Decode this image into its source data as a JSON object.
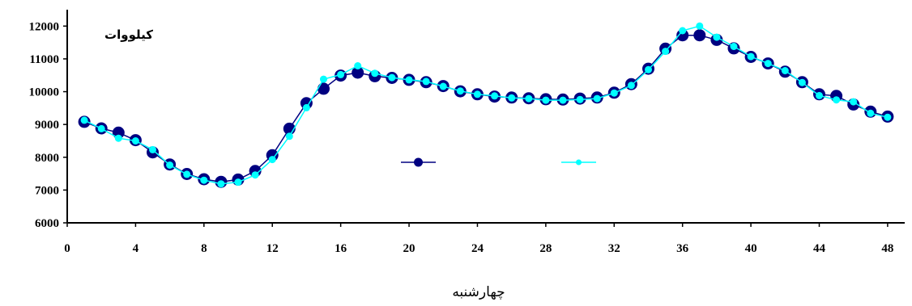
{
  "chart_data": {
    "type": "line",
    "title": "",
    "xlabel": "چهارشنبه",
    "ylabel": "کیلووات",
    "xlim": [
      0,
      49
    ],
    "ylim": [
      6000,
      12500
    ],
    "xticks": [
      0,
      4,
      8,
      12,
      16,
      20,
      24,
      28,
      32,
      36,
      40,
      44,
      48
    ],
    "yticks": [
      6000,
      7000,
      8000,
      9000,
      10000,
      11000,
      12000
    ],
    "grid": false,
    "legend_position": "center",
    "x": [
      1,
      2,
      3,
      4,
      5,
      6,
      7,
      8,
      9,
      10,
      11,
      12,
      13,
      14,
      15,
      16,
      17,
      18,
      19,
      20,
      21,
      22,
      23,
      24,
      25,
      26,
      27,
      28,
      29,
      30,
      31,
      32,
      33,
      34,
      35,
      36,
      37,
      38,
      39,
      40,
      41,
      42,
      43,
      44,
      45,
      46,
      47,
      48
    ],
    "series": [
      {
        "color": "#000080",
        "values": [
          9080,
          8880,
          8750,
          8520,
          8150,
          7780,
          7490,
          7330,
          7250,
          7320,
          7580,
          8060,
          8870,
          9650,
          10090,
          10490,
          10580,
          10470,
          10420,
          10360,
          10290,
          10170,
          10010,
          9920,
          9850,
          9820,
          9800,
          9770,
          9760,
          9790,
          9820,
          9970,
          10230,
          10700,
          11310,
          11720,
          11720,
          11580,
          11320,
          11060,
          10860,
          10610,
          10290,
          9920,
          9870,
          9610,
          9390,
          9240
        ]
      },
      {
        "color": "#00FFFF",
        "values": [
          9130,
          8870,
          8580,
          8500,
          8230,
          7760,
          7480,
          7300,
          7190,
          7240,
          7460,
          7930,
          8640,
          9510,
          10380,
          10520,
          10790,
          10560,
          10430,
          10360,
          10310,
          10160,
          10020,
          9920,
          9870,
          9810,
          9790,
          9740,
          9740,
          9760,
          9790,
          9960,
          10190,
          10670,
          11230,
          11860,
          12000,
          11660,
          11380,
          11070,
          10860,
          10640,
          10280,
          9880,
          9750,
          9690,
          9340,
          9220
        ]
      }
    ]
  }
}
